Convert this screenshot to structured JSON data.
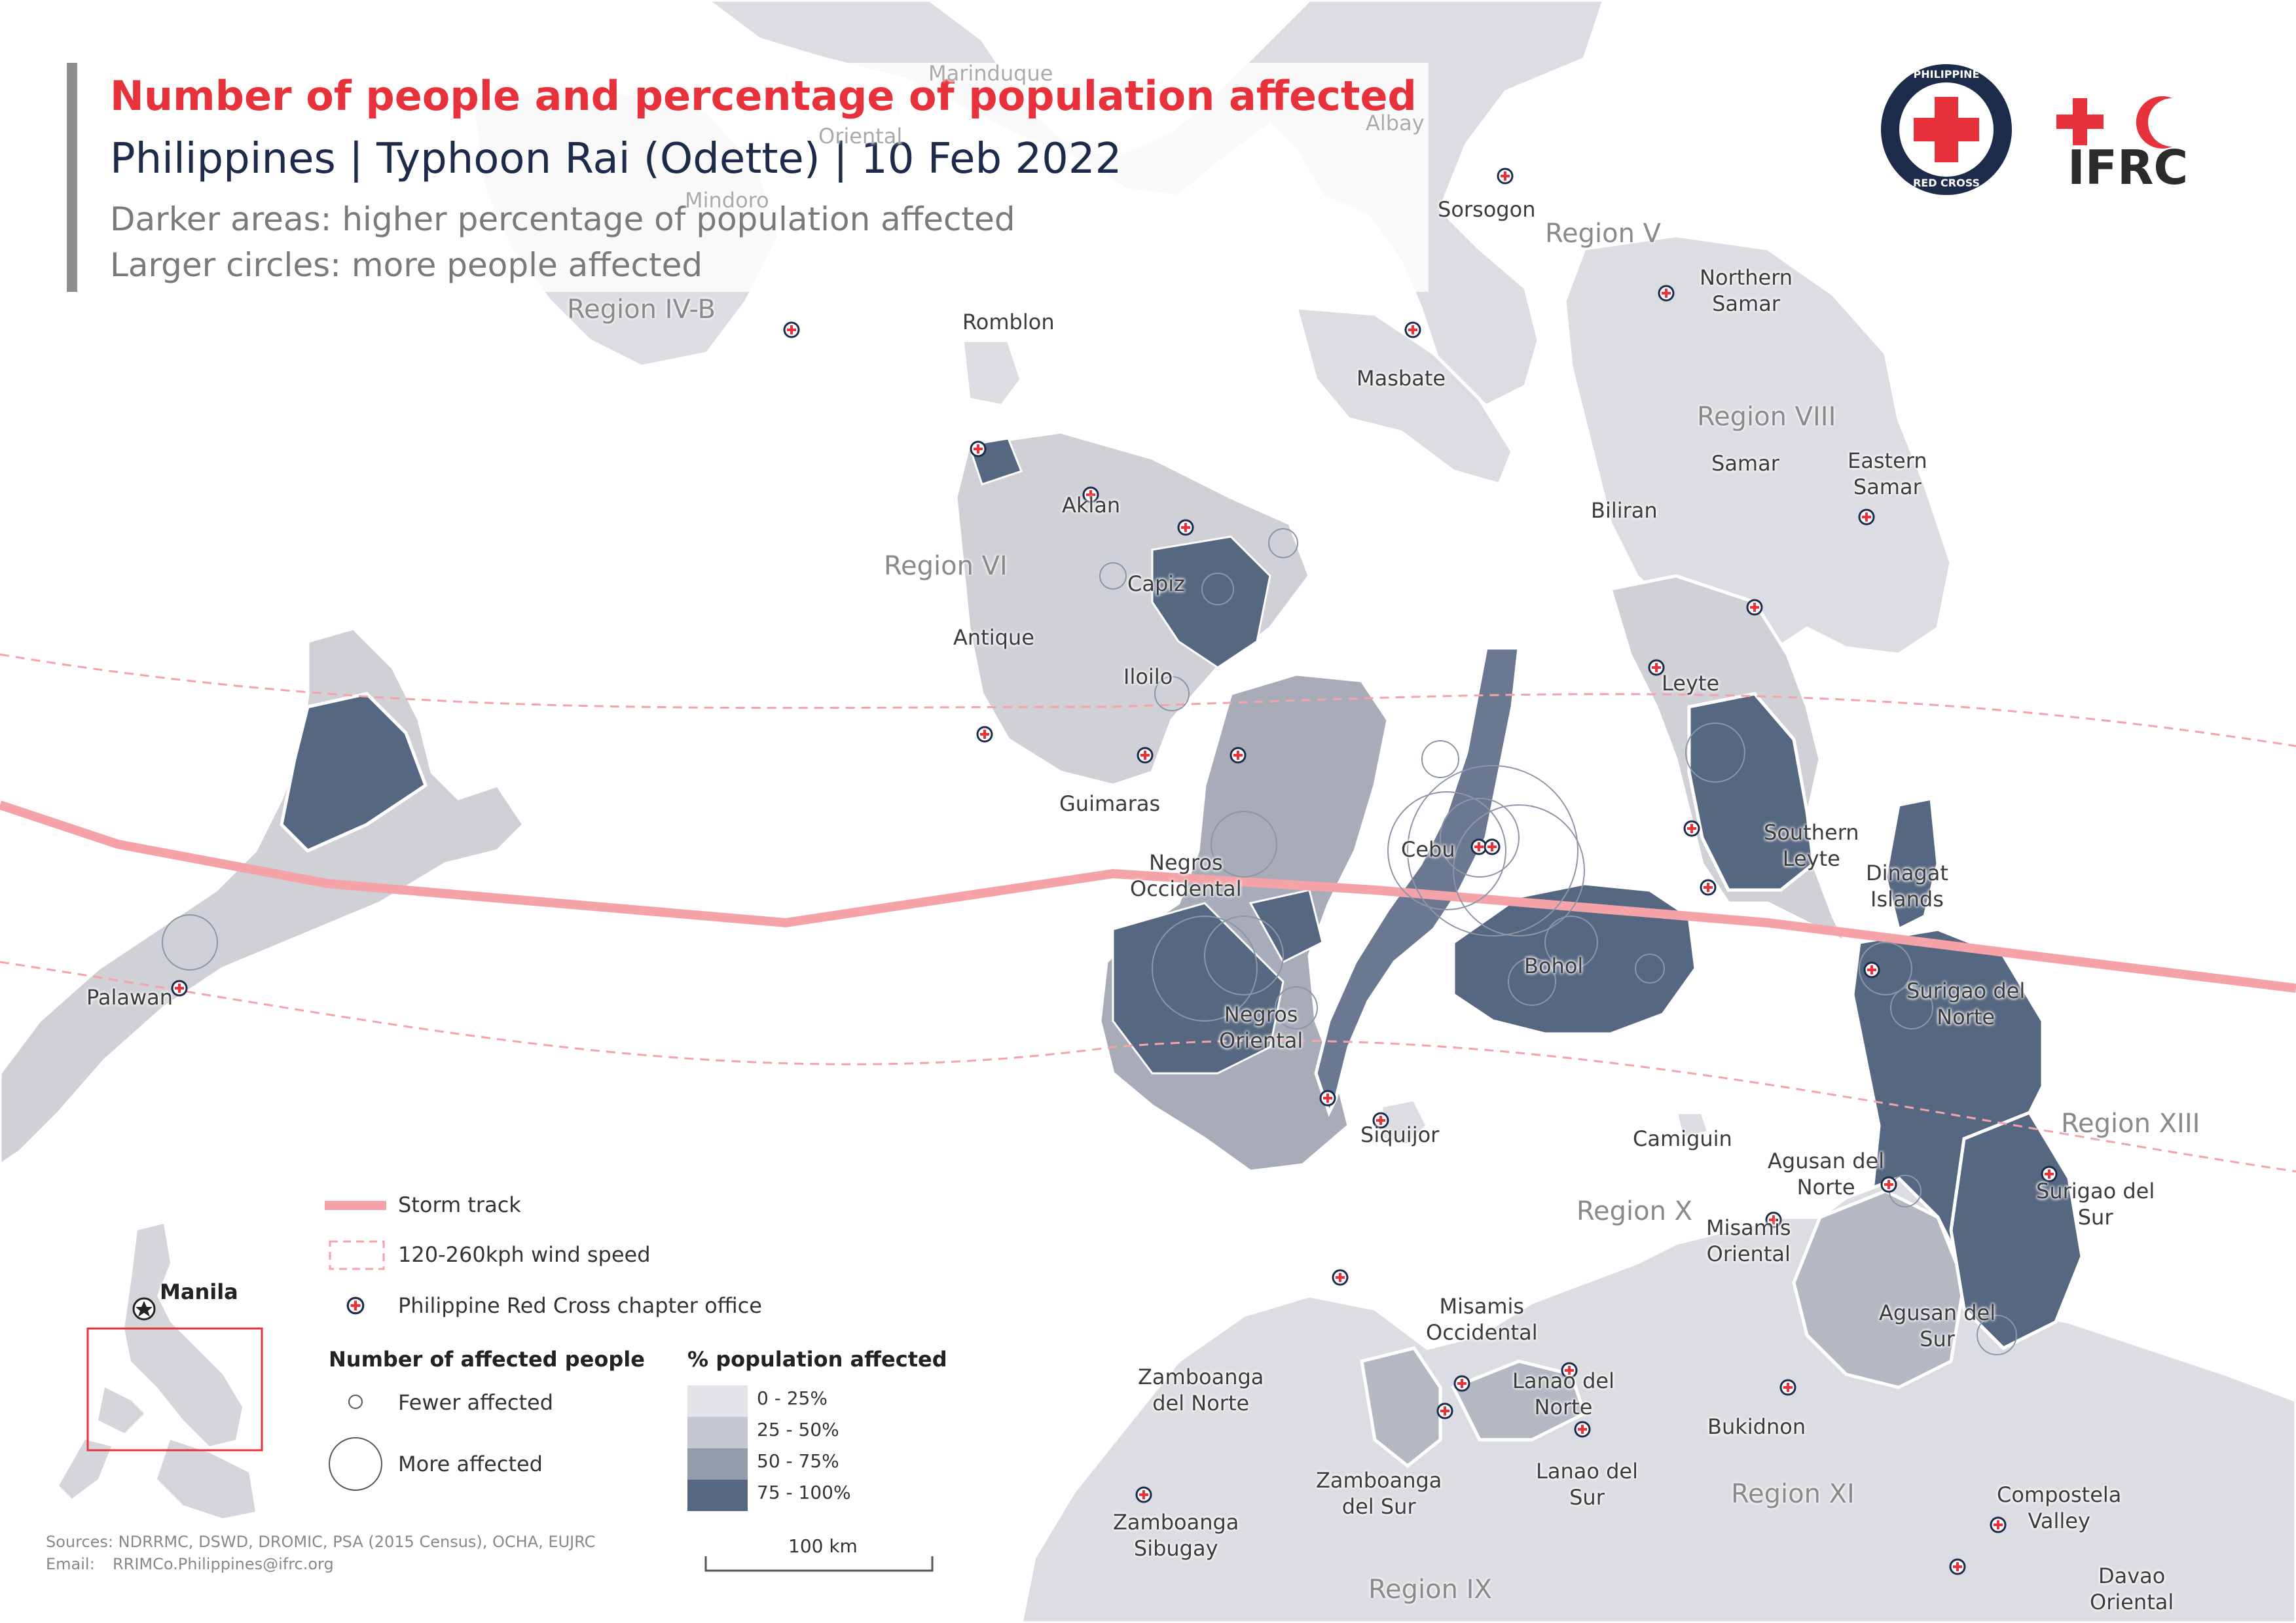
{
  "title": "Number of people and percentage of population affected",
  "subtitle": "Philippines | Typhoon Rai (Odette) | 10 Feb 2022",
  "notes": [
    "Darker areas: higher percentage of population affected",
    "Larger circles: more people affected"
  ],
  "logos": {
    "prc_text_top": "PHILIPPINE",
    "prc_text_bottom": "RED CROSS",
    "ifrc_text": "IFRC"
  },
  "colors": {
    "storm_track": "#f5a3a8",
    "cat_0_25": "#e3e4e8",
    "cat_25_50": "#c5c8d0",
    "cat_50_75": "#959cac",
    "cat_75_100": "#566781",
    "title_red": "#e8323b",
    "navy": "#1c2b4a"
  },
  "region_labels": [
    "Region IV-B",
    "Region V",
    "Region VI",
    "Region VIII",
    "Region X",
    "Region XIII",
    "Region XI",
    "Region IX"
  ],
  "place_labels": {
    "marinduque": "Marinduque",
    "oriental": "Oriental",
    "mindoro": "Mindoro",
    "albay": "Albay",
    "sorsogon": "Sorsogon",
    "northern_samar": "Northern\nSamar",
    "romblon": "Romblon",
    "masbate": "Masbate",
    "samar": "Samar",
    "eastern_samar": "Eastern\nSamar",
    "biliran": "Biliran",
    "aklan": "Aklan",
    "capiz": "Capiz",
    "antique": "Antique",
    "iloilo": "Iloilo",
    "leyte": "Leyte",
    "guimaras": "Guimaras",
    "southern_leyte": "Southern\nLeyte",
    "cebu": "Cebu",
    "negros_occidental": "Negros\nOccidental",
    "dinagat": "Dinagat\nIslands",
    "bohol": "Bohol",
    "palawan": "Palawan",
    "surigao_norte": "Surigao del\nNorte",
    "negros_oriental": "Negros\nOriental",
    "siquijor": "Siquijor",
    "camiguin": "Camiguin",
    "agusan_norte": "Agusan del\nNorte",
    "surigao_sur": "Surigao del\nSur",
    "misamis_oriental": "Misamis\nOriental",
    "misamis_occidental": "Misamis\nOccidental",
    "agusan_sur": "Agusan del\nSur",
    "zamboanga_norte": "Zamboanga\ndel Norte",
    "lanao_norte": "Lanao del\nNorte",
    "bukidnon": "Bukidnon",
    "lanao_sur": "Lanao del\nSur",
    "zamboanga_sur": "Zamboanga\ndel Sur",
    "compostela": "Compostela\nValley",
    "zamboanga_sibugay": "Zamboanga\nSibugay",
    "davao_oriental": "Davao\nOriental",
    "manila": "Manila"
  },
  "legend": {
    "storm_track": "Storm track",
    "wind": "120-260kph wind speed",
    "chapter": "Philippine Red Cross chapter office",
    "affected_head": "Number of affected people",
    "fewer": "Fewer affected",
    "more": "More affected",
    "pct_head": "% population affected",
    "categories": [
      "0 - 25%",
      "25 - 50%",
      "50 - 75%",
      "75 - 100%"
    ],
    "scale": "100 km"
  },
  "sources": "Sources: NDRRMC, DSWD, DROMIC, PSA (2015 Census), OCHA, EUJRC",
  "email_label": "Email:",
  "email": "RRIMCo.Philippines@ifrc.org"
}
